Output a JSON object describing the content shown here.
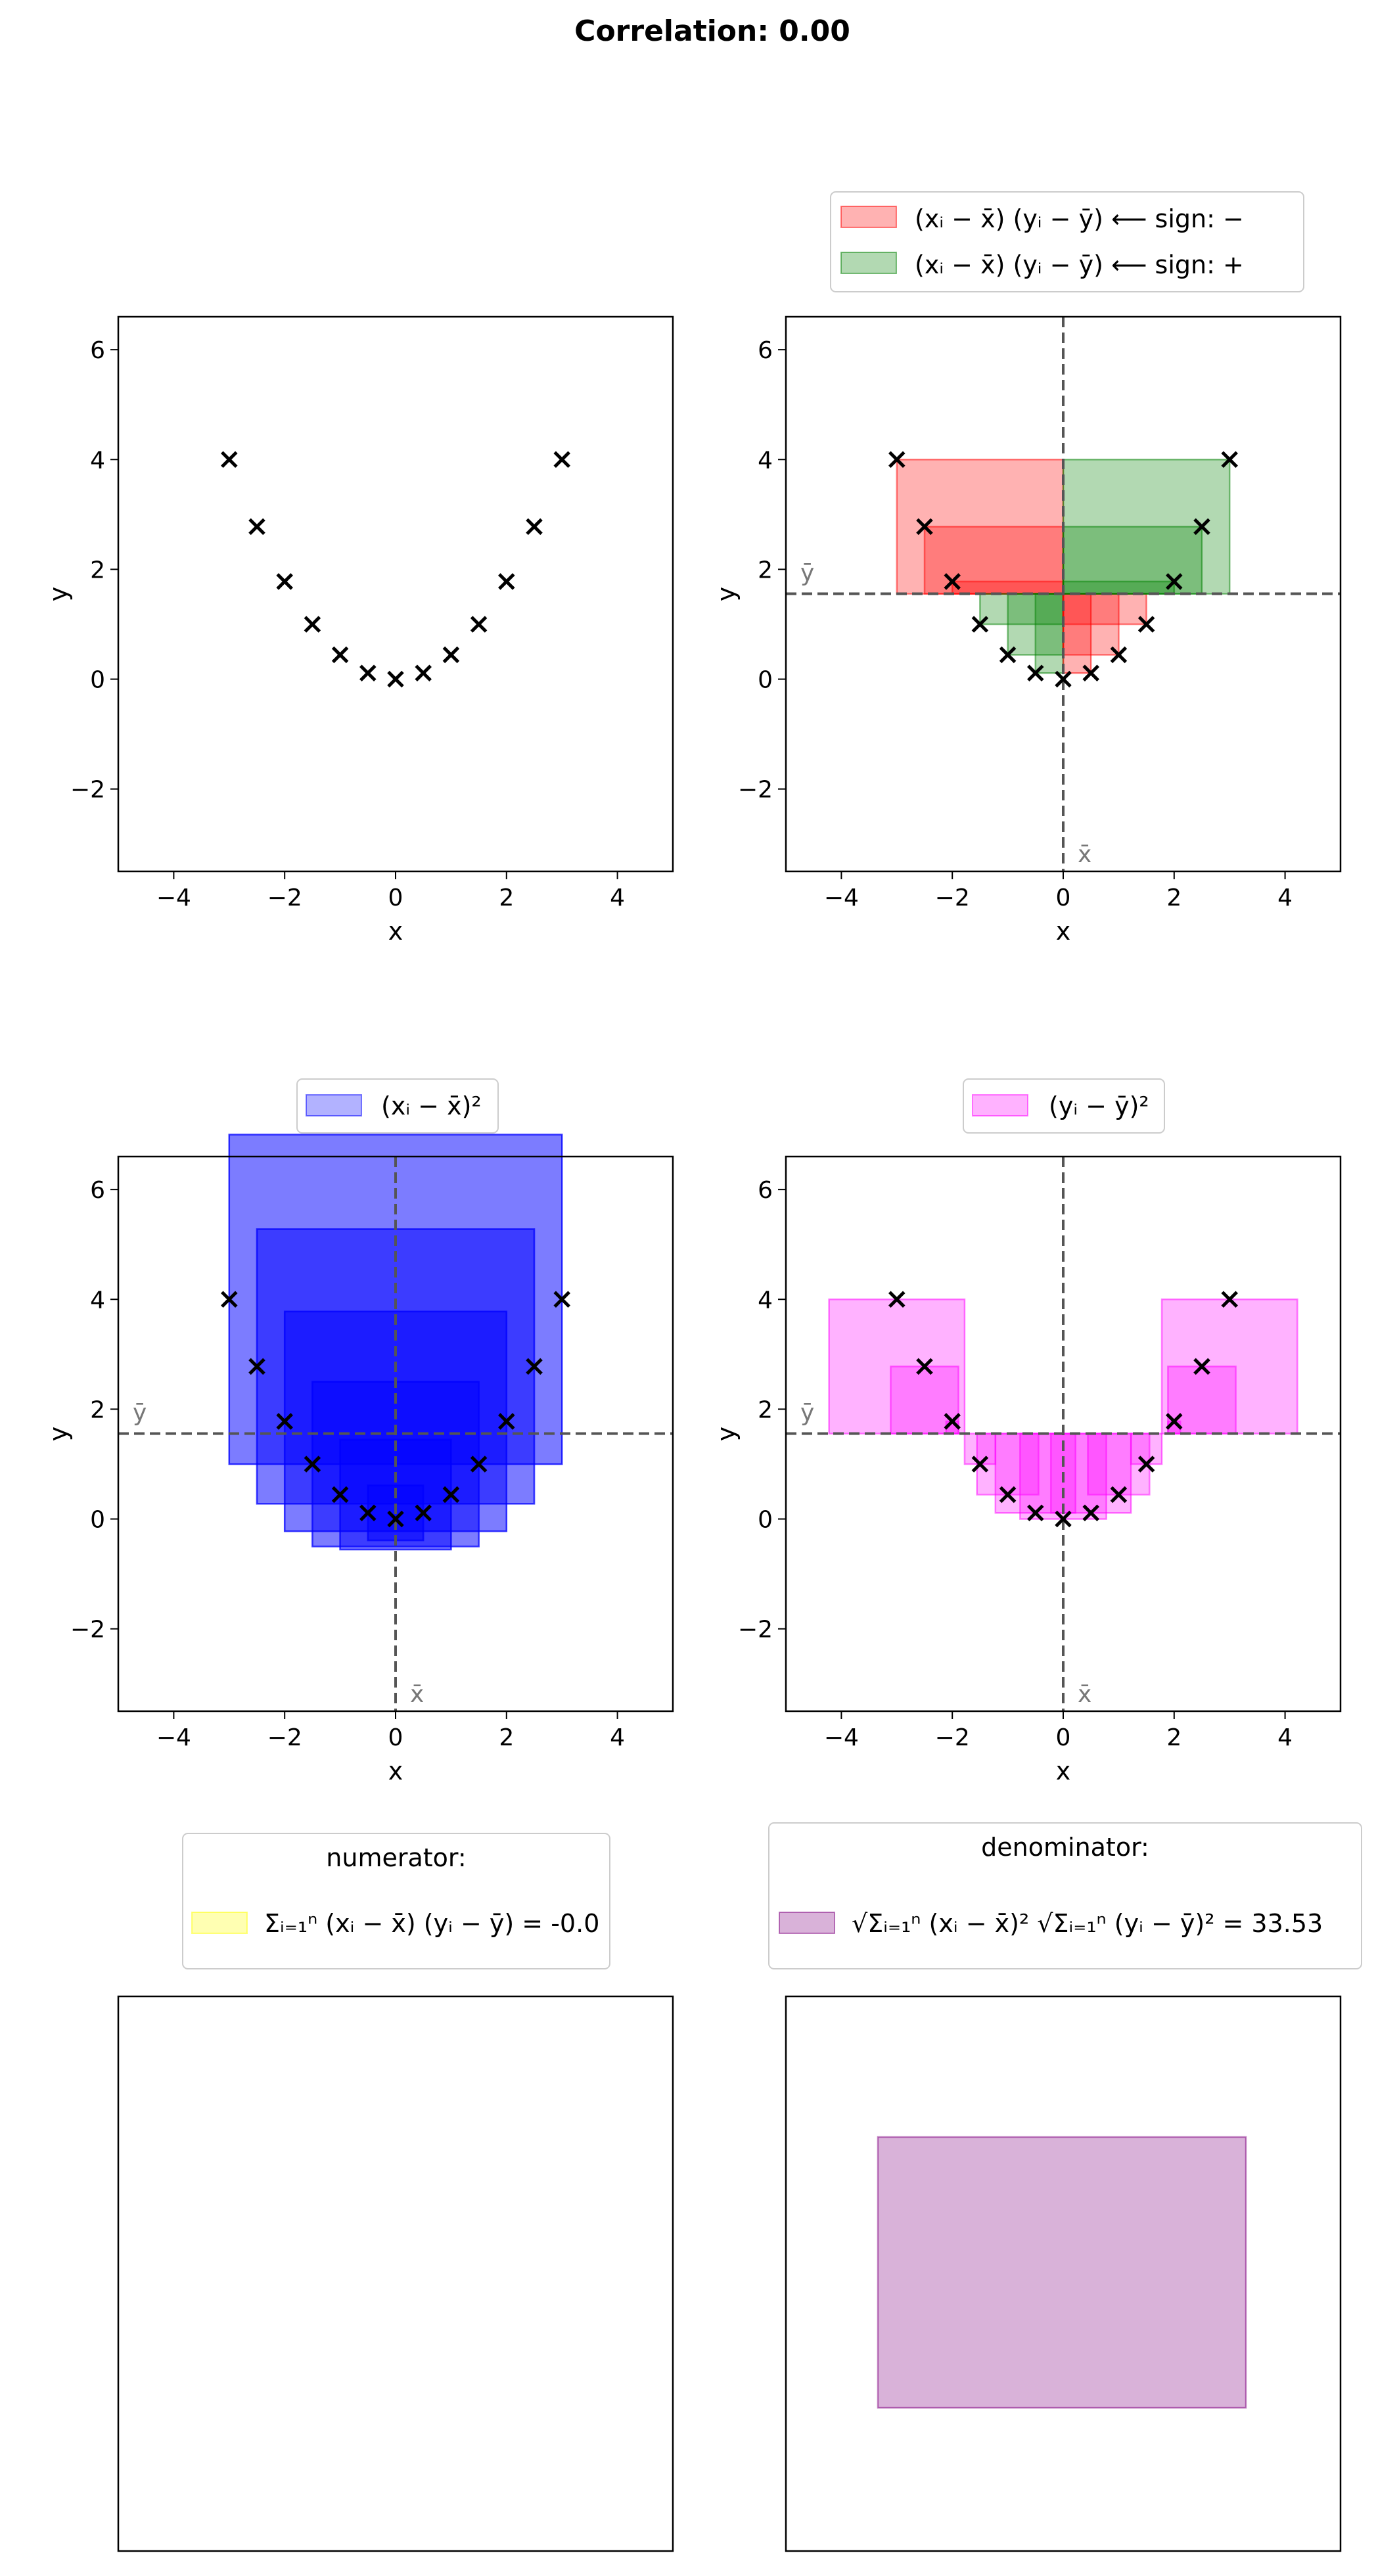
{
  "title": "Correlation: 0.00",
  "colors": {
    "negative": "#ff0000",
    "positive": "#008000",
    "x_squares": "#0000ff",
    "y_squares": "#ff00ff",
    "numerator": "#ffff00",
    "denominator": "#800080",
    "marker": "#000000"
  },
  "chart_data": [
    {
      "type": "scatter",
      "panel": "scatter",
      "x": [
        -3.0,
        -2.5,
        -2.0,
        -1.5,
        -1.0,
        -0.5,
        0.0,
        0.5,
        1.0,
        1.5,
        2.0,
        2.5,
        3.0
      ],
      "y": [
        4.0,
        2.778,
        1.778,
        1.0,
        0.444,
        0.111,
        0.0,
        0.111,
        0.444,
        1.0,
        1.778,
        2.778,
        4.0
      ],
      "xlabel": "x",
      "ylabel": "y",
      "xlim": [
        -5,
        5
      ],
      "ylim": [
        -3.5,
        6.6
      ],
      "xticks": [
        "−4",
        "−2",
        "0",
        "2",
        "4"
      ],
      "yticks": [
        "−2",
        "0",
        "2",
        "4",
        "6"
      ]
    },
    {
      "type": "scatter",
      "panel": "cross-products",
      "legend": [
        "(xᵢ − x̄) (yᵢ − ȳ)  ⟵  sign: −",
        "(xᵢ − x̄) (yᵢ − ȳ)  ⟵  sign: +"
      ],
      "mean_labels": {
        "x": "x̄",
        "y": "ȳ"
      },
      "xlabel": "x",
      "ylabel": "y"
    },
    {
      "type": "scatter",
      "panel": "x-squares",
      "legend": [
        "(xᵢ − x̄)²"
      ],
      "xlabel": "x",
      "ylabel": "y"
    },
    {
      "type": "scatter",
      "panel": "y-squares",
      "legend": [
        "(yᵢ − ȳ)²"
      ],
      "xlabel": "x",
      "ylabel": "y"
    },
    {
      "type": "area",
      "panel": "numerator",
      "legend_title": "numerator:",
      "legend_label": "Σᵢ₌₁ⁿ (xᵢ − x̄) (yᵢ − ȳ) = -0.0",
      "value": -0.0
    },
    {
      "type": "area",
      "panel": "denominator",
      "legend_title": "denominator:",
      "legend_label": "√Σᵢ₌₁ⁿ (xᵢ − x̄)² √Σᵢ₌₁ⁿ (yᵢ − ȳ)² = 33.53",
      "value": 33.53
    }
  ]
}
